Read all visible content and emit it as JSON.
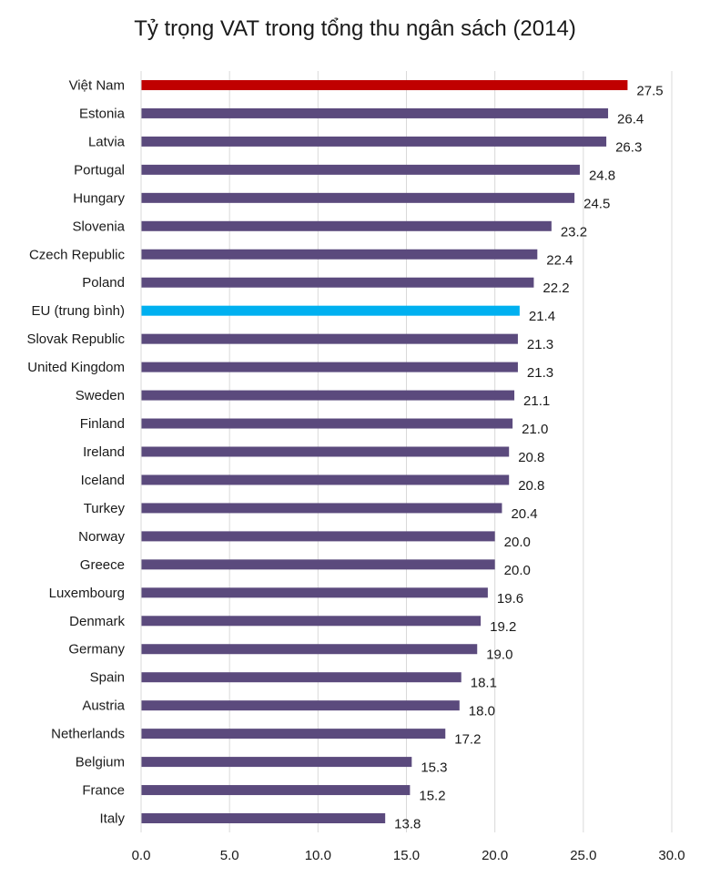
{
  "chart_data": {
    "type": "bar",
    "orientation": "horizontal",
    "title": "Tỷ trọng VAT trong tổng thu ngân sách (2014)",
    "categories": [
      "Việt Nam",
      "Estonia",
      "Latvia",
      "Portugal",
      "Hungary",
      "Slovenia",
      "Czech Republic",
      "Poland",
      "EU (trung bình)",
      "Slovak Republic",
      "United Kingdom",
      "Sweden",
      "Finland",
      "Ireland",
      "Iceland",
      "Turkey",
      "Norway",
      "Greece",
      "Luxembourg",
      "Denmark",
      "Germany",
      "Spain",
      "Austria",
      "Netherlands",
      "Belgium",
      "France",
      "Italy"
    ],
    "values": [
      27.5,
      26.4,
      26.3,
      24.8,
      24.5,
      23.2,
      22.4,
      22.2,
      21.4,
      21.3,
      21.3,
      21.1,
      21.0,
      20.8,
      20.8,
      20.4,
      20.0,
      20.0,
      19.6,
      19.2,
      19.0,
      18.1,
      18.0,
      17.2,
      15.3,
      15.2,
      13.8
    ],
    "value_labels": [
      "27.5",
      "26.4",
      "26.3",
      "24.8",
      "24.5",
      "23.2",
      "22.4",
      "22.2",
      "21.4",
      "21.3",
      "21.3",
      "21.1",
      "21.0",
      "20.8",
      "20.8",
      "20.4",
      "20.0",
      "20.0",
      "19.6",
      "19.2",
      "19.0",
      "18.1",
      "18.0",
      "17.2",
      "15.3",
      "15.2",
      "13.8"
    ],
    "xlim": [
      0,
      30
    ],
    "xticks": [
      "0.0",
      "5.0",
      "10.0",
      "15.0",
      "20.0",
      "25.0",
      "30.0"
    ],
    "xtick_values": [
      0,
      5,
      10,
      15,
      20,
      25,
      30
    ],
    "xlabel": "",
    "ylabel": "",
    "grid": "vertical",
    "legend": "none",
    "colors": {
      "default": "#5b4a7d",
      "highlight_vietnam": "#c00000",
      "highlight_eu": "#00b0f0",
      "gridline": "#d9d9d9"
    },
    "bar_colors": [
      "#c00000",
      "#5b4a7d",
      "#5b4a7d",
      "#5b4a7d",
      "#5b4a7d",
      "#5b4a7d",
      "#5b4a7d",
      "#5b4a7d",
      "#00b0f0",
      "#5b4a7d",
      "#5b4a7d",
      "#5b4a7d",
      "#5b4a7d",
      "#5b4a7d",
      "#5b4a7d",
      "#5b4a7d",
      "#5b4a7d",
      "#5b4a7d",
      "#5b4a7d",
      "#5b4a7d",
      "#5b4a7d",
      "#5b4a7d",
      "#5b4a7d",
      "#5b4a7d",
      "#5b4a7d",
      "#5b4a7d",
      "#5b4a7d"
    ]
  }
}
